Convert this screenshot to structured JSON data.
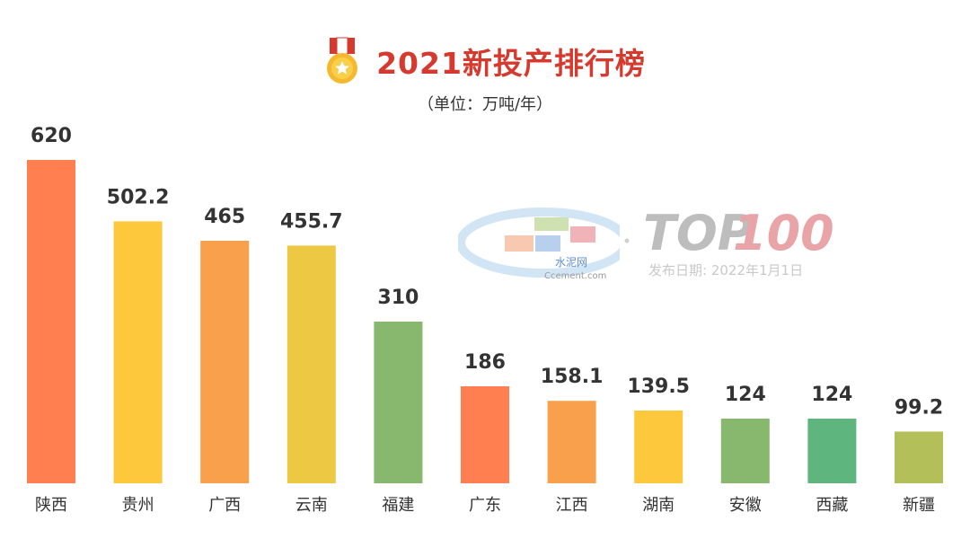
{
  "header": {
    "title": "2021新投产排行榜",
    "unit": "（单位：万吨/年）"
  },
  "watermark": {
    "brand_cn": "水泥网",
    "brand_en": "Ccement.com",
    "top": "TOP",
    "hundred": "100",
    "date": "发布日期: 2022年1月1日"
  },
  "icons": {
    "medal": "medal-icon"
  },
  "chart_data": {
    "type": "bar",
    "categories": [
      "陕西",
      "贵州",
      "广西",
      "云南",
      "福建",
      "广东",
      "江西",
      "湖南",
      "安徽",
      "西藏",
      "新疆"
    ],
    "values": [
      620,
      502.2,
      465,
      455.7,
      310,
      186,
      158.1,
      139.5,
      124,
      124,
      99.2
    ],
    "value_labels": [
      "620",
      "502.2",
      "465",
      "455.7",
      "310",
      "186",
      "158.1",
      "139.5",
      "124",
      "124",
      "99.2"
    ],
    "colors": [
      "#ff7f50",
      "#fdc83b",
      "#f9a04c",
      "#ecc843",
      "#87b86e",
      "#ff7f50",
      "#f9a04c",
      "#fdc83b",
      "#87b86e",
      "#5fb57e",
      "#b3c05a"
    ],
    "ylim": [
      0,
      620
    ]
  }
}
